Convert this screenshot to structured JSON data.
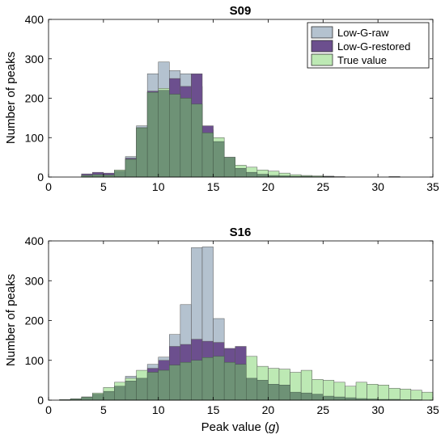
{
  "colors": {
    "low_g_raw": "#b4c2cf",
    "low_g_restored": "#6c4f8e",
    "true_value": "#bde9b4",
    "overlap": "#6e9276",
    "axis": "#000000"
  },
  "chart_data": [
    {
      "type": "bar",
      "subtype": "overlaid-histogram",
      "title": "S09",
      "xlabel": "",
      "ylabel": "Number of peaks",
      "xlim": [
        0,
        35
      ],
      "ylim": [
        0,
        400
      ],
      "xticks": [
        "0",
        "5",
        "10",
        "15",
        "20",
        "25",
        "30",
        "35"
      ],
      "yticks": [
        "0",
        "100",
        "200",
        "300",
        "400"
      ],
      "legend_position": "top-right",
      "bin_edges": [
        3,
        4,
        5,
        6,
        7,
        8,
        9,
        10,
        11,
        12,
        13,
        14,
        15,
        16,
        17,
        18,
        19,
        20,
        21,
        22,
        23,
        24,
        25,
        26,
        27,
        28,
        29,
        30,
        31,
        32
      ],
      "series": [
        {
          "name": "Low-G-raw",
          "values": [
            5,
            10,
            8,
            18,
            52,
            130,
            262,
            292,
            270,
            262,
            230,
            120,
            90,
            50,
            22,
            12,
            7,
            5,
            3,
            2,
            2,
            1,
            2,
            0,
            0,
            0,
            0,
            0,
            1
          ]
        },
        {
          "name": "Low-G-restored",
          "values": [
            8,
            12,
            10,
            15,
            48,
            125,
            218,
            220,
            250,
            230,
            262,
            130,
            90,
            50,
            22,
            12,
            7,
            4,
            3,
            2,
            2,
            1,
            2,
            0,
            0,
            0,
            0,
            0,
            1
          ]
        },
        {
          "name": "True value",
          "values": [
            4,
            6,
            5,
            18,
            45,
            125,
            215,
            225,
            210,
            200,
            185,
            112,
            100,
            50,
            30,
            25,
            18,
            15,
            10,
            6,
            4,
            3,
            1,
            1,
            0,
            0,
            0,
            0,
            0
          ]
        }
      ]
    },
    {
      "type": "bar",
      "subtype": "overlaid-histogram",
      "title": "S16",
      "xlabel": "Peak value (g)",
      "ylabel": "Number of peaks",
      "xlim": [
        0,
        35
      ],
      "ylim": [
        0,
        400
      ],
      "xticks": [
        "0",
        "5",
        "10",
        "15",
        "20",
        "25",
        "30",
        "35"
      ],
      "yticks": [
        "0",
        "100",
        "200",
        "300",
        "400"
      ],
      "bin_edges": [
        1,
        2,
        3,
        4,
        5,
        6,
        7,
        8,
        9,
        10,
        11,
        12,
        13,
        14,
        15,
        16,
        17,
        18,
        19,
        20,
        21,
        22,
        23,
        24,
        25,
        26,
        27,
        28,
        29,
        30,
        31,
        32,
        33,
        34,
        35
      ],
      "series": [
        {
          "name": "Low-G-raw",
          "values": [
            1,
            3,
            7,
            15,
            25,
            35,
            60,
            62,
            90,
            108,
            165,
            240,
            383,
            385,
            205,
            105,
            95,
            55,
            50,
            40,
            38,
            20,
            18,
            15,
            12,
            10,
            8,
            6,
            4,
            3,
            2,
            2,
            1,
            0
          ]
        },
        {
          "name": "Low-G-restored",
          "values": [
            1,
            3,
            8,
            15,
            22,
            35,
            48,
            55,
            80,
            100,
            135,
            140,
            153,
            148,
            145,
            130,
            135,
            90,
            75,
            55,
            50,
            30,
            20,
            15,
            10,
            8,
            6,
            4,
            3,
            2,
            2,
            1,
            1,
            0
          ]
        },
        {
          "name": "True value",
          "values": [
            1,
            3,
            8,
            18,
            32,
            45,
            55,
            75,
            70,
            75,
            88,
            95,
            100,
            107,
            110,
            95,
            90,
            110,
            85,
            80,
            78,
            70,
            75,
            52,
            50,
            45,
            35,
            45,
            40,
            38,
            30,
            28,
            25,
            20
          ]
        }
      ]
    }
  ],
  "figure_text": {
    "p1_title": "S09",
    "p2_title": "S16",
    "ylabel": "Number of peaks",
    "xlabel_prefix": "Peak value (",
    "xlabel_var": "g",
    "xlabel_suffix": ")",
    "legend": [
      "Low-G-raw",
      "Low-G-restored",
      "True value"
    ]
  }
}
